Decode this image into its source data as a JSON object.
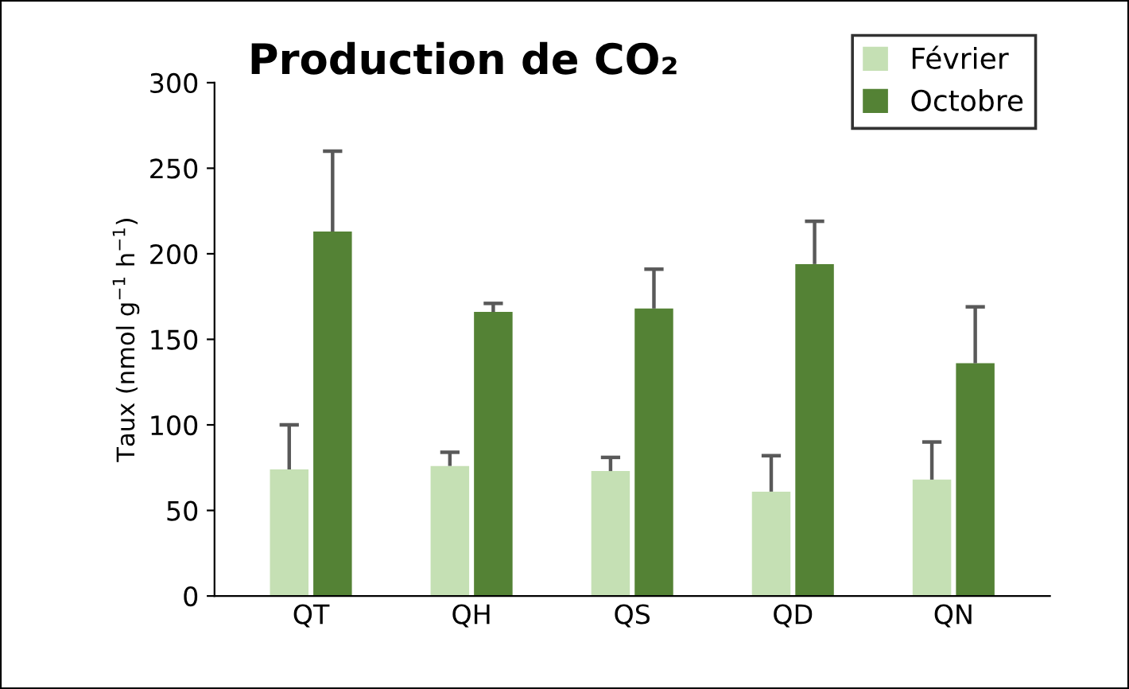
{
  "chart_data": {
    "type": "bar",
    "title": "Production de CO₂",
    "ylabel": "Taux (nmol g$^{−1}$ h$^{−1}$)",
    "categories": [
      "QT",
      "QH",
      "QS",
      "QD",
      "QN"
    ],
    "series": [
      {
        "name": "Février",
        "color": "#c5e0b4",
        "values": [
          74,
          76,
          73,
          61,
          68
        ],
        "errors": [
          [
            74,
            100
          ],
          [
            76,
            84
          ],
          [
            73,
            81
          ],
          [
            61,
            82
          ],
          [
            68,
            90
          ]
        ]
      },
      {
        "name": "Octobre",
        "color": "#548235",
        "values": [
          213,
          166,
          168,
          194,
          136
        ],
        "errors": [
          [
            213,
            260
          ],
          [
            166,
            171
          ],
          [
            168,
            191
          ],
          [
            194,
            219
          ],
          [
            136,
            169
          ]
        ]
      }
    ],
    "ylim": [
      0,
      300
    ],
    "yticks": [
      0,
      50,
      100,
      150,
      200,
      250,
      300
    ],
    "grid": false,
    "legend": "top right"
  }
}
